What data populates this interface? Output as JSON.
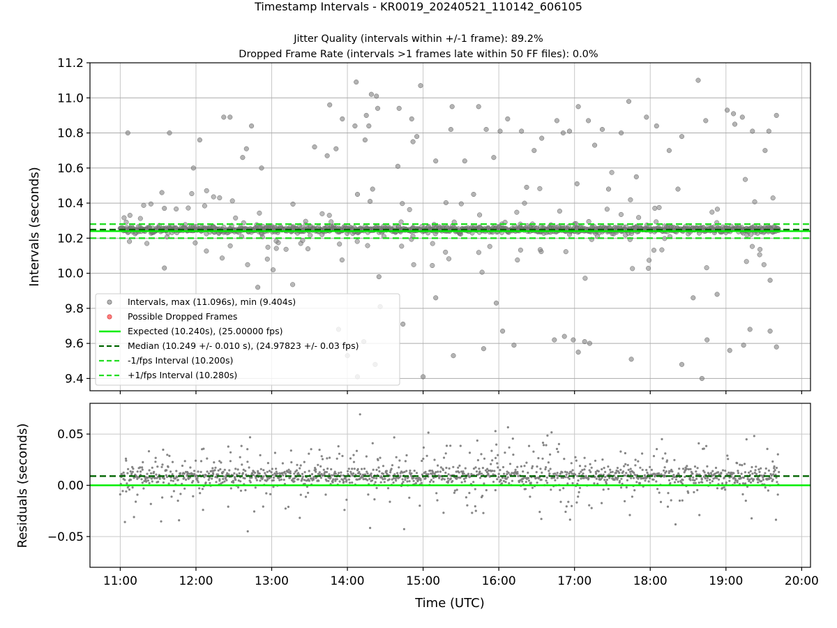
{
  "title": "Timestamp Intervals - KR0019_20240521_110142_606105",
  "subtitle_lines": [
    "Jitter Quality (intervals within +/-1 frame): 89.2%",
    "Dropped Frame Rate (intervals >1 frames late within 50 FF files): 0.0%"
  ],
  "colors": {
    "points": "#808080",
    "dropped": "#ff6666",
    "expected": "#00ee00",
    "median": "#006400",
    "interval_bounds": "#22dd22",
    "grid": "#c8c8c8"
  },
  "chart_data": [
    {
      "type": "scatter",
      "xlabel": "",
      "ylabel": "Intervals (seconds)",
      "xlim": [
        "10:36",
        "20:07"
      ],
      "ylim": [
        9.33,
        11.2
      ],
      "yticks": [
        "9.4",
        "9.6",
        "9.8",
        "10.0",
        "10.2",
        "10.4",
        "10.6",
        "10.8",
        "11.0",
        "11.2"
      ],
      "grid": true,
      "legend_position": "lower-left",
      "series": [
        {
          "name": "Intervals, max (11.096s), min (9.404s)",
          "kind": "points",
          "x_range": [
            "11:00",
            "19:42"
          ],
          "max": 11.096,
          "min": 9.404,
          "center": 10.249,
          "sample_points": [
            {
              "x": "11:06",
              "y": 10.8
            },
            {
              "x": "11:33",
              "y": 10.46
            },
            {
              "x": "11:35",
              "y": 10.37
            },
            {
              "x": "11:35",
              "y": 10.03
            },
            {
              "x": "11:39",
              "y": 10.8
            },
            {
              "x": "11:58",
              "y": 10.6
            },
            {
              "x": "12:03",
              "y": 10.76
            },
            {
              "x": "12:22",
              "y": 10.89
            },
            {
              "x": "12:27",
              "y": 10.89
            },
            {
              "x": "12:37",
              "y": 10.66
            },
            {
              "x": "12:40",
              "y": 10.71
            },
            {
              "x": "12:44",
              "y": 10.84
            },
            {
              "x": "12:49",
              "y": 9.92
            },
            {
              "x": "12:52",
              "y": 10.6
            },
            {
              "x": "13:34",
              "y": 10.72
            },
            {
              "x": "13:44",
              "y": 10.67
            },
            {
              "x": "13:46",
              "y": 10.96
            },
            {
              "x": "13:51",
              "y": 10.71
            },
            {
              "x": "13:53",
              "y": 9.68
            },
            {
              "x": "13:56",
              "y": 10.88
            },
            {
              "x": "14:00",
              "y": 9.53
            },
            {
              "x": "14:06",
              "y": 10.84
            },
            {
              "x": "14:07",
              "y": 11.09
            },
            {
              "x": "14:08",
              "y": 10.45
            },
            {
              "x": "14:08",
              "y": 9.41
            },
            {
              "x": "14:13",
              "y": 9.61
            },
            {
              "x": "14:14",
              "y": 10.76
            },
            {
              "x": "14:15",
              "y": 10.9
            },
            {
              "x": "14:17",
              "y": 10.84
            },
            {
              "x": "14:18",
              "y": 10.41
            },
            {
              "x": "14:19",
              "y": 11.02
            },
            {
              "x": "14:20",
              "y": 10.48
            },
            {
              "x": "14:22",
              "y": 9.48
            },
            {
              "x": "14:23",
              "y": 11.01
            },
            {
              "x": "14:24",
              "y": 10.94
            },
            {
              "x": "14:25",
              "y": 9.98
            },
            {
              "x": "14:26",
              "y": 9.81
            },
            {
              "x": "14:40",
              "y": 10.61
            },
            {
              "x": "14:41",
              "y": 10.94
            },
            {
              "x": "14:44",
              "y": 9.71
            },
            {
              "x": "14:51",
              "y": 10.88
            },
            {
              "x": "14:52",
              "y": 10.75
            },
            {
              "x": "14:55",
              "y": 10.78
            },
            {
              "x": "14:58",
              "y": 11.07
            },
            {
              "x": "15:00",
              "y": 9.41
            },
            {
              "x": "15:10",
              "y": 9.86
            },
            {
              "x": "15:10",
              "y": 10.64
            },
            {
              "x": "15:22",
              "y": 10.82
            },
            {
              "x": "15:23",
              "y": 10.95
            },
            {
              "x": "15:24",
              "y": 9.53
            },
            {
              "x": "15:33",
              "y": 10.64
            },
            {
              "x": "15:40",
              "y": 10.45
            },
            {
              "x": "15:44",
              "y": 10.95
            },
            {
              "x": "15:48",
              "y": 9.57
            },
            {
              "x": "15:50",
              "y": 10.82
            },
            {
              "x": "15:56",
              "y": 10.66
            },
            {
              "x": "15:58",
              "y": 9.83
            },
            {
              "x": "16:01",
              "y": 10.81
            },
            {
              "x": "16:03",
              "y": 9.67
            },
            {
              "x": "16:07",
              "y": 10.88
            },
            {
              "x": "16:12",
              "y": 9.59
            },
            {
              "x": "16:18",
              "y": 10.81
            },
            {
              "x": "16:22",
              "y": 10.49
            },
            {
              "x": "16:28",
              "y": 10.7
            },
            {
              "x": "16:34",
              "y": 10.77
            },
            {
              "x": "16:44",
              "y": 9.62
            },
            {
              "x": "16:46",
              "y": 10.87
            },
            {
              "x": "16:51",
              "y": 10.8
            },
            {
              "x": "16:52",
              "y": 9.64
            },
            {
              "x": "16:56",
              "y": 10.81
            },
            {
              "x": "16:59",
              "y": 9.62
            },
            {
              "x": "17:02",
              "y": 10.51
            },
            {
              "x": "17:03",
              "y": 9.55
            },
            {
              "x": "17:03",
              "y": 10.95
            },
            {
              "x": "17:08",
              "y": 9.61
            },
            {
              "x": "17:11",
              "y": 10.87
            },
            {
              "x": "17:12",
              "y": 9.6
            },
            {
              "x": "17:16",
              "y": 10.73
            },
            {
              "x": "17:22",
              "y": 10.82
            },
            {
              "x": "17:27",
              "y": 10.48
            },
            {
              "x": "17:37",
              "y": 10.8
            },
            {
              "x": "17:43",
              "y": 10.98
            },
            {
              "x": "17:45",
              "y": 9.51
            },
            {
              "x": "17:49",
              "y": 10.55
            },
            {
              "x": "17:57",
              "y": 10.89
            },
            {
              "x": "18:05",
              "y": 10.84
            },
            {
              "x": "18:15",
              "y": 10.7
            },
            {
              "x": "18:22",
              "y": 10.48
            },
            {
              "x": "18:25",
              "y": 10.78
            },
            {
              "x": "18:25",
              "y": 9.48
            },
            {
              "x": "18:34",
              "y": 9.86
            },
            {
              "x": "18:38",
              "y": 11.1
            },
            {
              "x": "18:41",
              "y": 9.4
            },
            {
              "x": "18:44",
              "y": 10.87
            },
            {
              "x": "18:45",
              "y": 9.62
            },
            {
              "x": "18:53",
              "y": 9.88
            },
            {
              "x": "19:01",
              "y": 10.93
            },
            {
              "x": "19:03",
              "y": 9.56
            },
            {
              "x": "19:06",
              "y": 10.91
            },
            {
              "x": "19:07",
              "y": 10.85
            },
            {
              "x": "19:13",
              "y": 10.89
            },
            {
              "x": "19:14",
              "y": 9.59
            },
            {
              "x": "19:19",
              "y": 9.68
            },
            {
              "x": "19:21",
              "y": 10.81
            },
            {
              "x": "19:31",
              "y": 10.7
            },
            {
              "x": "19:34",
              "y": 10.81
            },
            {
              "x": "19:35",
              "y": 9.96
            },
            {
              "x": "19:35",
              "y": 9.67
            },
            {
              "x": "19:40",
              "y": 10.9
            },
            {
              "x": "19:40",
              "y": 9.58
            }
          ]
        },
        {
          "name": "Possible Dropped Frames",
          "kind": "points",
          "count": 0
        },
        {
          "name": "Expected (10.240s), (25.00000 fps)",
          "kind": "hline",
          "y": 10.24,
          "style": "solid"
        },
        {
          "name": "Median (10.249 +/- 0.010 s), (24.97823 +/- 0.03 fps)",
          "kind": "hline",
          "y": 10.249,
          "style": "dashed"
        },
        {
          "name": "-1/fps Interval (10.200s)",
          "kind": "hline",
          "y": 10.2,
          "style": "dashed"
        },
        {
          "name": "+1/fps Interval (10.280s)",
          "kind": "hline",
          "y": 10.28,
          "style": "dashed"
        }
      ]
    },
    {
      "type": "scatter",
      "xlabel": "Time (UTC)",
      "ylabel": "Residuals (seconds)",
      "xlim": [
        "10:36",
        "20:07"
      ],
      "xticks": [
        "11:00",
        "12:00",
        "13:00",
        "14:00",
        "15:00",
        "16:00",
        "17:00",
        "18:00",
        "19:00",
        "20:00"
      ],
      "ylim": [
        -0.08,
        0.08
      ],
      "yticks": [
        "−0.05",
        "0.00",
        "0.05"
      ],
      "grid": true,
      "series": [
        {
          "name": "Residuals",
          "kind": "points",
          "x_range": [
            "11:00",
            "19:42"
          ],
          "max": 0.075,
          "min": -0.071,
          "center": 0.009
        },
        {
          "name": "Expected",
          "kind": "hline",
          "y": 0.0,
          "style": "solid"
        },
        {
          "name": "Median",
          "kind": "hline",
          "y": 0.009,
          "style": "dashed"
        }
      ]
    }
  ]
}
